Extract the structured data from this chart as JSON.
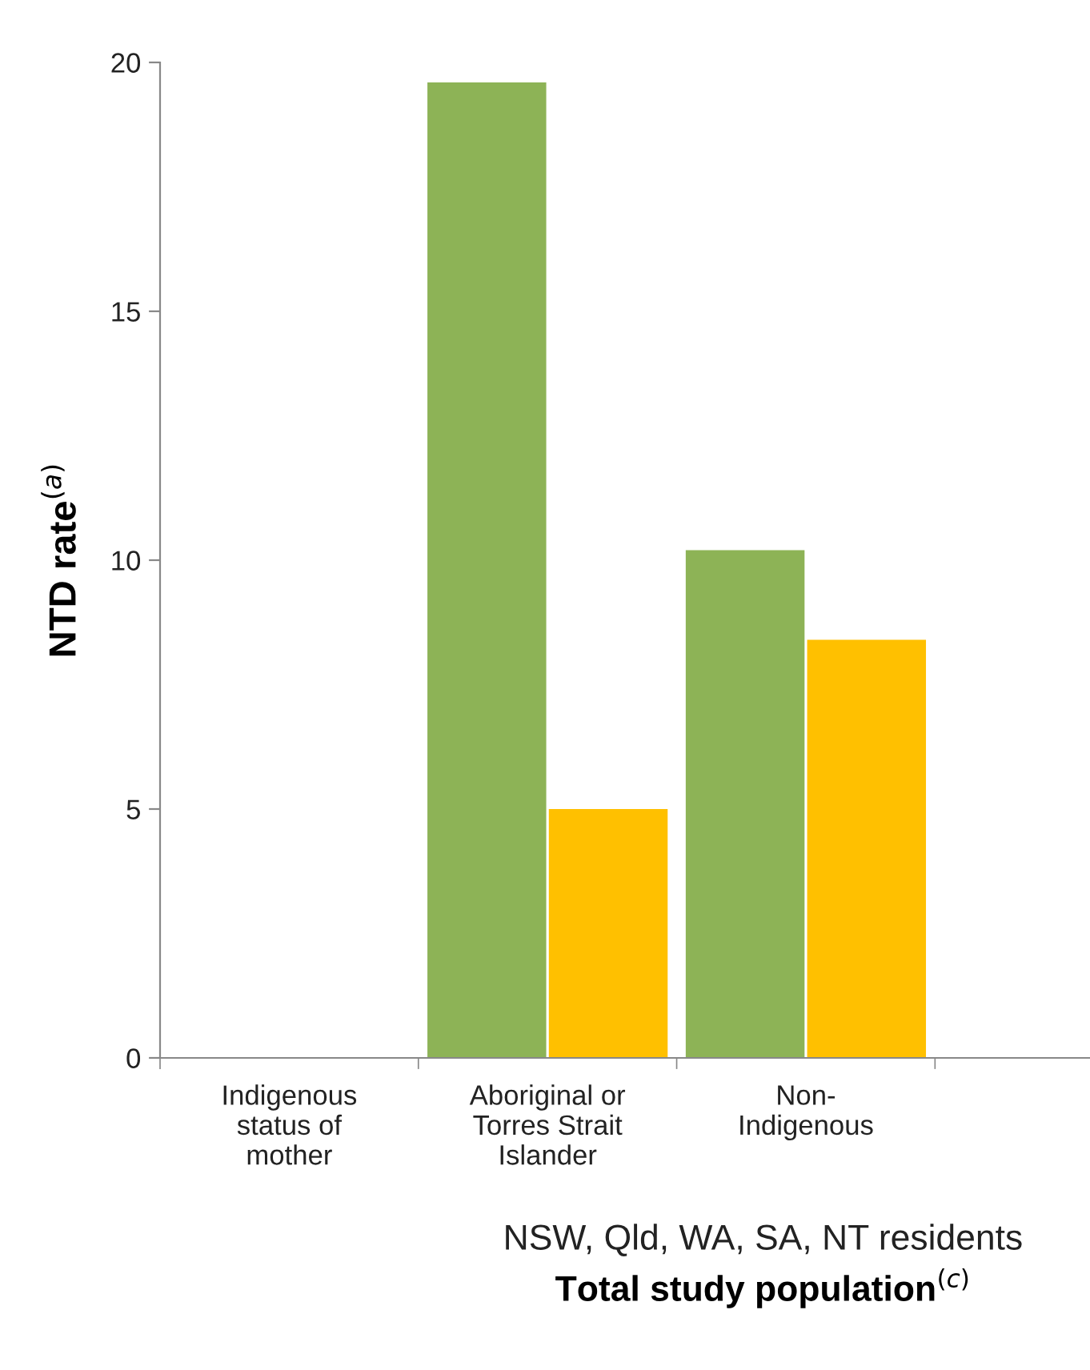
{
  "chart_data": {
    "type": "bar",
    "title": "Total study population$^{(c)}$",
    "xlabel": "NSW, Qld, WA, SA, NT residents",
    "ylabel": "NTD rate$^{(a)}$",
    "categories": [
      "Indigenous\nstatus of\nmother",
      "Aboriginal or\nTorres Strait\nIslander",
      "Non-\nIndigenous"
    ],
    "series": [
      {
        "color": "#8db356",
        "values": [
          null,
          19.6,
          10.2
        ]
      },
      {
        "color": "#ffc000",
        "values": [
          null,
          5.0,
          8.4
        ]
      }
    ],
    "ylim": [
      0,
      20
    ],
    "yticks": [
      0,
      5,
      10,
      15,
      20
    ],
    "grid": false,
    "legend": false
  }
}
